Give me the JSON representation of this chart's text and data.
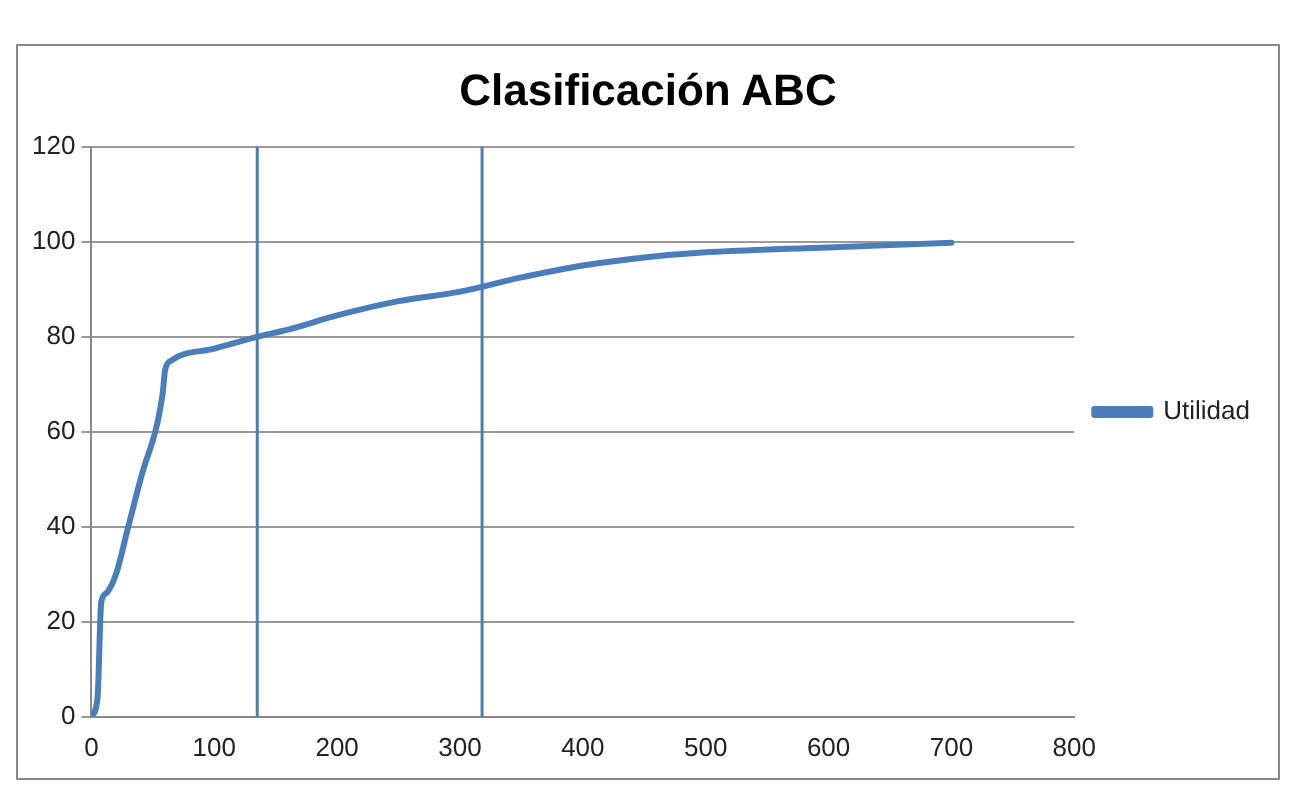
{
  "chart_data": {
    "type": "line",
    "title": "Clasificación ABC",
    "x": [
      0,
      5,
      8,
      12,
      20,
      30,
      40,
      58,
      60,
      65,
      100,
      135,
      160,
      200,
      250,
      300,
      350,
      400,
      450,
      500,
      600,
      700
    ],
    "series": [
      {
        "name": "Utilidad",
        "color": "#4a7ebb",
        "values": [
          0,
          4,
          24,
          26,
          30,
          40,
          50,
          68,
          73,
          75,
          77.5,
          80,
          81.5,
          84.5,
          87.5,
          89.5,
          92.5,
          95,
          96.7,
          97.8,
          98.8,
          99.8
        ]
      }
    ],
    "xlim": [
      0,
      800
    ],
    "xticks": [
      0,
      100,
      200,
      300,
      400,
      500,
      600,
      700,
      800
    ],
    "ylim": [
      0,
      120
    ],
    "yticks": [
      0,
      20,
      40,
      60,
      80,
      100,
      120
    ],
    "ref_lines": [
      {
        "axis": "x",
        "value": 135,
        "color": "#4a7ebb"
      },
      {
        "axis": "x",
        "value": 318,
        "color": "#4a7ebb"
      }
    ],
    "grid": "y",
    "legend": "right",
    "marker": "none",
    "line_style": "solid"
  }
}
